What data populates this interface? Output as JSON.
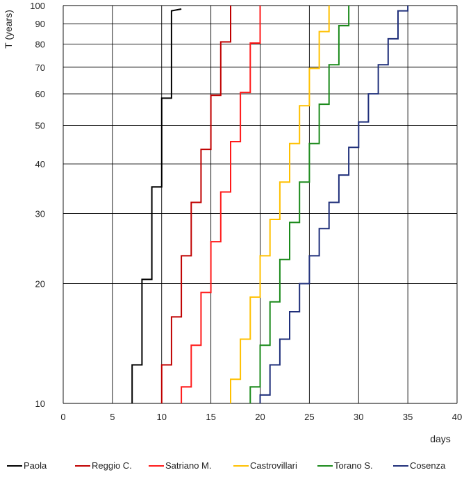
{
  "chart_data": {
    "type": "line",
    "title": "",
    "xlabel": "days",
    "ylabel": "T (years)",
    "x_ticks": [
      0,
      5,
      10,
      15,
      20,
      25,
      30,
      35,
      40
    ],
    "y_ticks": [
      10,
      20,
      30,
      40,
      50,
      60,
      70,
      80,
      90,
      100
    ],
    "xlim": [
      0,
      40
    ],
    "ylim": [
      10,
      100
    ],
    "y_scale": "log",
    "grid": true,
    "legend_position": "bottom",
    "series": [
      {
        "name": "Paola",
        "color": "#000000",
        "x": [
          7,
          7,
          8,
          8,
          9,
          9,
          10,
          10,
          11,
          11,
          12
        ],
        "y": [
          10,
          12.5,
          12.5,
          20.5,
          20.5,
          35,
          35,
          58.5,
          58.5,
          97,
          98
        ]
      },
      {
        "name": "Reggio C.",
        "color": "#c00000",
        "x": [
          10,
          10,
          11,
          11,
          12,
          12,
          13,
          13,
          14,
          14,
          15,
          15,
          16,
          16,
          17,
          17
        ],
        "y": [
          10,
          12.5,
          12.5,
          16.5,
          16.5,
          23.5,
          23.5,
          32,
          32,
          43.5,
          43.5,
          59.5,
          59.5,
          81,
          81,
          100
        ]
      },
      {
        "name": "Satriano M.",
        "color": "#ff1a1a",
        "x": [
          12,
          12,
          13,
          13,
          14,
          14,
          15,
          15,
          16,
          16,
          17,
          17,
          18,
          18,
          19,
          19,
          20,
          20
        ],
        "y": [
          10,
          11,
          11,
          14,
          14,
          19,
          19,
          25.5,
          25.5,
          34,
          34,
          45.5,
          45.5,
          60.5,
          60.5,
          80.5,
          80.5,
          100
        ]
      },
      {
        "name": "Castrovillari",
        "color": "#ffc000",
        "x": [
          17,
          17,
          18,
          18,
          19,
          19,
          20,
          20,
          21,
          21,
          22,
          22,
          23,
          23,
          24,
          24,
          25,
          25,
          26,
          26,
          27,
          27
        ],
        "y": [
          10,
          11.5,
          11.5,
          14.5,
          14.5,
          18.5,
          18.5,
          23.5,
          23.5,
          29,
          29,
          36,
          36,
          45,
          45,
          56,
          56,
          69.5,
          69.5,
          86,
          86,
          100
        ]
      },
      {
        "name": "Torano S.",
        "color": "#1b8a1b",
        "x": [
          19,
          19,
          20,
          20,
          21,
          21,
          22,
          22,
          23,
          23,
          24,
          24,
          25,
          25,
          26,
          26,
          27,
          27,
          28,
          28,
          29,
          29
        ],
        "y": [
          10,
          11,
          11,
          14,
          14,
          18,
          18,
          23,
          23,
          28.5,
          28.5,
          36,
          36,
          45,
          45,
          56.5,
          56.5,
          71,
          71,
          89,
          89,
          100
        ]
      },
      {
        "name": "Cosenza",
        "color": "#1f2f7a",
        "x": [
          20,
          20,
          21,
          21,
          22,
          22,
          23,
          23,
          24,
          24,
          25,
          25,
          26,
          26,
          27,
          27,
          28,
          28,
          29,
          29,
          30,
          30,
          31,
          31,
          32,
          32,
          33,
          33,
          34,
          34,
          35,
          35
        ],
        "y": [
          10,
          10.5,
          10.5,
          12.5,
          12.5,
          14.5,
          14.5,
          17,
          17,
          20,
          20,
          23.5,
          23.5,
          27.5,
          27.5,
          32,
          32,
          37.5,
          37.5,
          44,
          44,
          51,
          51,
          60,
          60,
          71,
          71,
          82.5,
          82.5,
          97,
          97,
          100
        ]
      }
    ]
  }
}
